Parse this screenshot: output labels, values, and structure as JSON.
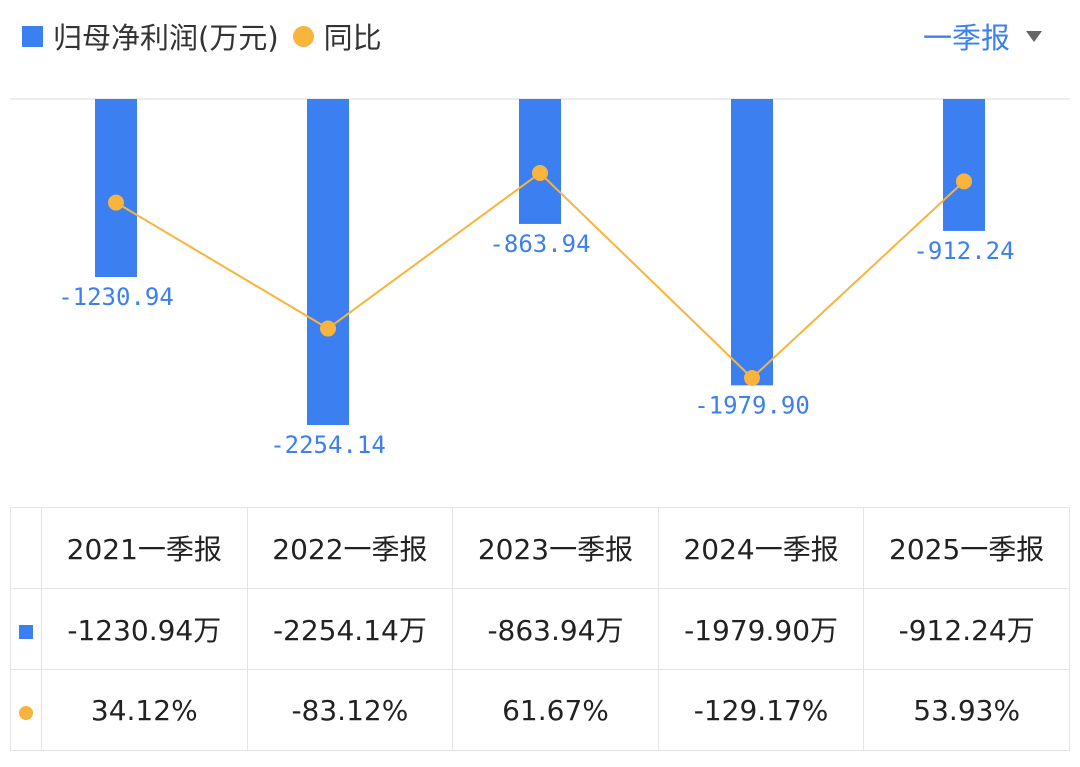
{
  "legend": {
    "bar_label": "归母净利润(万元)",
    "line_label": "同比",
    "bar_icon": "blue-square-icon",
    "line_icon": "orange-dot-icon"
  },
  "period_selector": {
    "label": "一季报",
    "icon": "caret-down-icon"
  },
  "colors": {
    "bar": "#3b7ff0",
    "line": "#f8b43c",
    "label": "#3b7ff0",
    "positive": "#dc4a4a",
    "negative": "#2fa066"
  },
  "chart_data": {
    "type": "bar",
    "categories": [
      "2021一季报",
      "2022一季报",
      "2023一季报",
      "2024一季报",
      "2025一季报"
    ],
    "series": [
      {
        "values": [
          -1230.94,
          -2254.14,
          -863.94,
          -1979.9,
          -912.24
        ],
        "labels": [
          "-1230.94",
          "-2254.14",
          "-863.94",
          "-1979.90",
          "-912.24"
        ]
      },
      {
        "type": "line",
        "values": [
          34.12,
          -83.12,
          61.67,
          -129.17,
          53.93
        ]
      }
    ],
    "ylim": [
      -2254.14,
      0
    ],
    "grid": false,
    "legend": "top-left"
  },
  "table": {
    "headers": [
      "2021一季报",
      "2022一季报",
      "2023一季报",
      "2024一季报",
      "2025一季报"
    ],
    "profit_row": [
      "-1230.94万",
      "-2254.14万",
      "-863.94万",
      "-1979.90万",
      "-912.24万"
    ],
    "yoy_row": [
      "34.12%",
      "-83.12%",
      "61.67%",
      "-129.17%",
      "53.93%"
    ]
  }
}
